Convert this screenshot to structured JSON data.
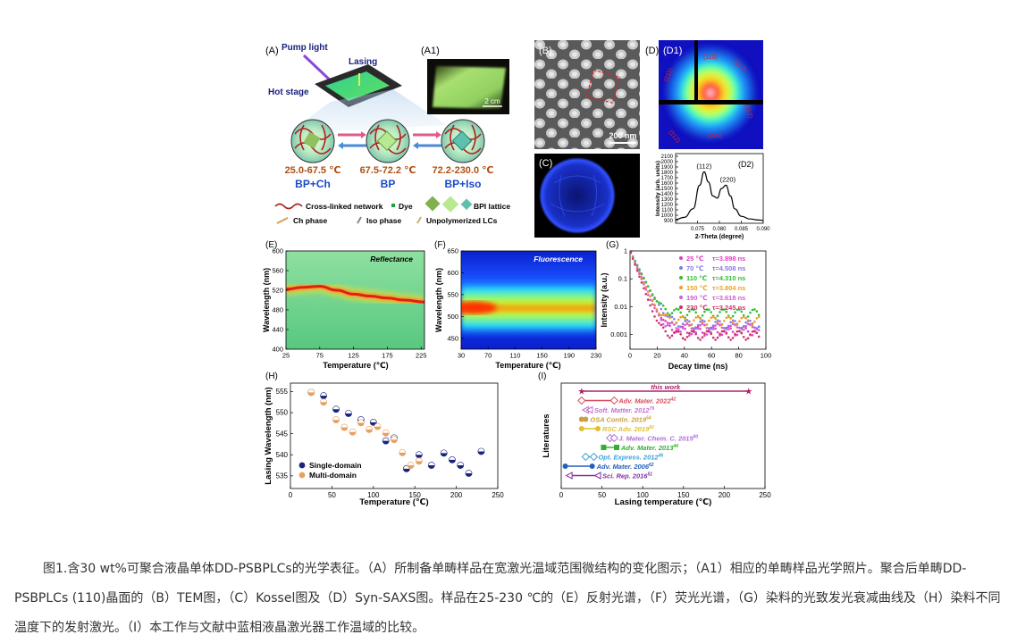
{
  "caption": "图1.含30 wt%可聚合液晶单体DD-PSBPLCs的光学表征。（A）所制备单畴样品在宽激光温域范围微结构的变化图示；（A1）相应的单畴样品光学照片。聚合后单畴DD-PSBPLCs (110)晶面的（B）TEM图，（C）Kossel图及（D）Syn-SAXS图。样品在25-230 ℃的（E）反射光谱，（F）荧光光谱，（G）染料的光致发光衰减曲线及（H）染料不同温度下的发射激光。（I）本工作与文献中蓝相液晶激光器工作温域的比较。",
  "panelA": {
    "label": "(A)",
    "pump": "Pump light",
    "lasing": "Lasing",
    "hot_stage": "Hot stage",
    "ranges": [
      "25.0-67.5 ℃",
      "67.5-72.2 ℃",
      "72.2-230.0 ℃"
    ],
    "phases": [
      "BP+Ch",
      "BP",
      "BP+Iso"
    ],
    "legend": {
      "network": "Cross-linked network",
      "dye": "Dye",
      "bpi": "BPI lattice",
      "ch": "Ch phase",
      "iso": "Iso phase",
      "unpoly": "Unpolymerized LCs"
    }
  },
  "panelA1": {
    "label": "(A1)",
    "scale": "2 cm"
  },
  "panelB": {
    "label": "(B)",
    "scale": "200 nm"
  },
  "panelC": {
    "label": "(C)"
  },
  "panelD": {
    "label": "(D)",
    "d1": "(D1)",
    "d2": "(D2)",
    "spots": [
      "(110)",
      "(112)",
      "(112)",
      "(112)",
      "(211)",
      "(220)"
    ]
  },
  "colors": {
    "blue": "#1a3cd6",
    "orange": "#f0a85a",
    "accent": "#e8a06a",
    "pink": "#e0308a"
  },
  "chart_data": [
    {
      "id": "D2",
      "type": "line",
      "title": "(D2)",
      "xlabel": "2-Theta (degree)",
      "ylabel": "Intensity (arb. units)",
      "x": [
        0.07,
        0.072,
        0.074,
        0.0755,
        0.0765,
        0.0775,
        0.0785,
        0.0795,
        0.0805,
        0.0815,
        0.0825,
        0.0835,
        0.085,
        0.087,
        0.089,
        0.09
      ],
      "y": [
        920,
        960,
        1120,
        1560,
        1810,
        1620,
        1360,
        1320,
        1500,
        1560,
        1360,
        1120,
        980,
        930,
        910,
        905
      ],
      "xlim": [
        0.07,
        0.09
      ],
      "ylim": [
        850,
        2150
      ],
      "xticks": [
        "0.075",
        "0.080",
        "0.085",
        "0.090"
      ],
      "yticks": [
        "900",
        "1000",
        "1100",
        "1200",
        "1300",
        "1400",
        "1500",
        "1600",
        "1700",
        "1800",
        "1900",
        "2000",
        "2100"
      ],
      "peak_labels": [
        "(112)",
        "(220)"
      ]
    },
    {
      "id": "E",
      "type": "heatmap",
      "title": "Reflectance",
      "xlabel": "Temperature (℃)",
      "ylabel": "Wavelength (nm)",
      "xlim": [
        25,
        230
      ],
      "ylim": [
        400,
        600
      ],
      "xticks": [
        "25",
        "75",
        "125",
        "175",
        "225"
      ],
      "yticks": [
        "400",
        "440",
        "480",
        "520",
        "560",
        "600"
      ],
      "ridge": {
        "temperature": [
          25,
          50,
          75,
          100,
          125,
          150,
          175,
          200,
          230
        ],
        "wavelength": [
          522,
          526,
          528,
          520,
          512,
          508,
          504,
          500,
          496
        ]
      }
    },
    {
      "id": "F",
      "type": "heatmap",
      "title": "Fluorescence",
      "xlabel": "Temperature (℃)",
      "ylabel": "Wavelength (nm)",
      "xlim": [
        30,
        230
      ],
      "ylim": [
        425,
        650
      ],
      "xticks": [
        "30",
        "70",
        "110",
        "150",
        "190",
        "230"
      ],
      "yticks": [
        "450",
        "500",
        "550",
        "600",
        "650"
      ],
      "peak_wavelength": 520
    },
    {
      "id": "G",
      "type": "scatter",
      "title": "",
      "xlabel": "Decay time (ns)",
      "ylabel": "Intensity (a.u.)",
      "xlim": [
        0,
        100
      ],
      "ylim": [
        0.0003,
        1
      ],
      "xticks": [
        "0",
        "20",
        "40",
        "60",
        "80",
        "100"
      ],
      "yticks": [
        "0.001",
        "0.01",
        "0.1",
        "1"
      ],
      "series": [
        {
          "name": "25 ℃",
          "tau": "τ=3.898 ns",
          "tau_value": 3.898,
          "color": "#e040c0",
          "floor": 0.0014
        },
        {
          "name": "70 ℃",
          "tau": "τ=4.508 ns",
          "tau_value": 4.508,
          "color": "#8878e8",
          "floor": 0.0024
        },
        {
          "name": "110 ℃",
          "tau": "τ=4.310 ns",
          "tau_value": 4.31,
          "color": "#30c030",
          "floor": 0.006
        },
        {
          "name": "150 ℃",
          "tau": "τ=3.804 ns",
          "tau_value": 3.804,
          "color": "#f0a020",
          "floor": 0.0032
        },
        {
          "name": "190 ℃",
          "tau": "τ=3.618 ns",
          "tau_value": 3.618,
          "color": "#d060d0",
          "floor": 0.0018
        },
        {
          "name": "230 ℃",
          "tau": "τ=3.245 ns",
          "tau_value": 3.245,
          "color": "#d0306a",
          "floor": 0.001
        }
      ]
    },
    {
      "id": "H",
      "type": "scatter",
      "title": "",
      "xlabel": "Temperature (℃)",
      "ylabel": "Lasing Wavelength (nm)",
      "xlim": [
        0,
        250
      ],
      "ylim": [
        532,
        557
      ],
      "xticks": [
        "0",
        "50",
        "100",
        "150",
        "200",
        "250"
      ],
      "yticks": [
        "535",
        "540",
        "545",
        "550",
        "555"
      ],
      "series": [
        {
          "name": "Single-domain",
          "color": "#1a237e",
          "x": [
            25,
            40,
            55,
            70,
            85,
            100,
            115,
            125,
            140,
            155,
            170,
            185,
            195,
            205,
            215,
            230
          ],
          "y": [
            554.8,
            554.0,
            550.8,
            549.8,
            548.3,
            547.7,
            543.3,
            544.0,
            536.7,
            540.0,
            537.5,
            540.4,
            538.8,
            537.5,
            535.6,
            540.8
          ]
        },
        {
          "name": "Multi-domain",
          "color": "#e8a060",
          "x": [
            25,
            40,
            55,
            65,
            75,
            85,
            95,
            105,
            115,
            125,
            135,
            145,
            155
          ],
          "y": [
            554.8,
            552.5,
            548.3,
            546.5,
            545.4,
            547.6,
            546.0,
            546.7,
            545.2,
            543.6,
            540.5,
            537.5,
            538.5
          ]
        }
      ]
    },
    {
      "id": "I",
      "type": "bar",
      "title": "",
      "xlabel": "Lasing temperature (℃)",
      "ylabel": "Literatures",
      "xlim": [
        0,
        250
      ],
      "xticks": [
        "0",
        "50",
        "100",
        "150",
        "200",
        "250"
      ],
      "bars": [
        {
          "label": "this work",
          "sup": "",
          "start": 25,
          "end": 230,
          "color": "#b0206a",
          "marker": "star"
        },
        {
          "label": "Adv. Mater. 2022",
          "sup": "42",
          "start": 25,
          "end": 65,
          "color": "#d84a5a",
          "marker": "diamond"
        },
        {
          "label": "Soft. Matter. 2012",
          "sup": "79",
          "start": 30,
          "end": 35,
          "color": "#c070d0",
          "marker": "triangle"
        },
        {
          "label": "OSA Contin. 2019",
          "sup": "54",
          "start": 25,
          "end": 30,
          "color": "#c8a040",
          "marker": "halfcircle"
        },
        {
          "label": "RSC Adv. 2019",
          "sup": "60",
          "start": 25,
          "end": 45,
          "color": "#e0c030",
          "marker": "circle"
        },
        {
          "label": "J. Mater. Chem. C. 2015",
          "sup": "80",
          "start": 60,
          "end": 65,
          "color": "#b070d8",
          "marker": "diamond"
        },
        {
          "label": "Adv. Mater. 2013",
          "sup": "44",
          "start": 52,
          "end": 68,
          "color": "#30b030",
          "marker": "square"
        },
        {
          "label": "Opt. Express. 2012",
          "sup": "46",
          "start": 30,
          "end": 40,
          "color": "#3aa0d8",
          "marker": "diamond"
        },
        {
          "label": "Adv. Mater. 2006",
          "sup": "62",
          "start": 5,
          "end": 38,
          "color": "#2060c0",
          "marker": "halfcircle"
        },
        {
          "label": "Sci. Rep. 2016",
          "sup": "51",
          "start": 10,
          "end": 45,
          "color": "#8030a0",
          "marker": "triangle"
        }
      ]
    }
  ]
}
